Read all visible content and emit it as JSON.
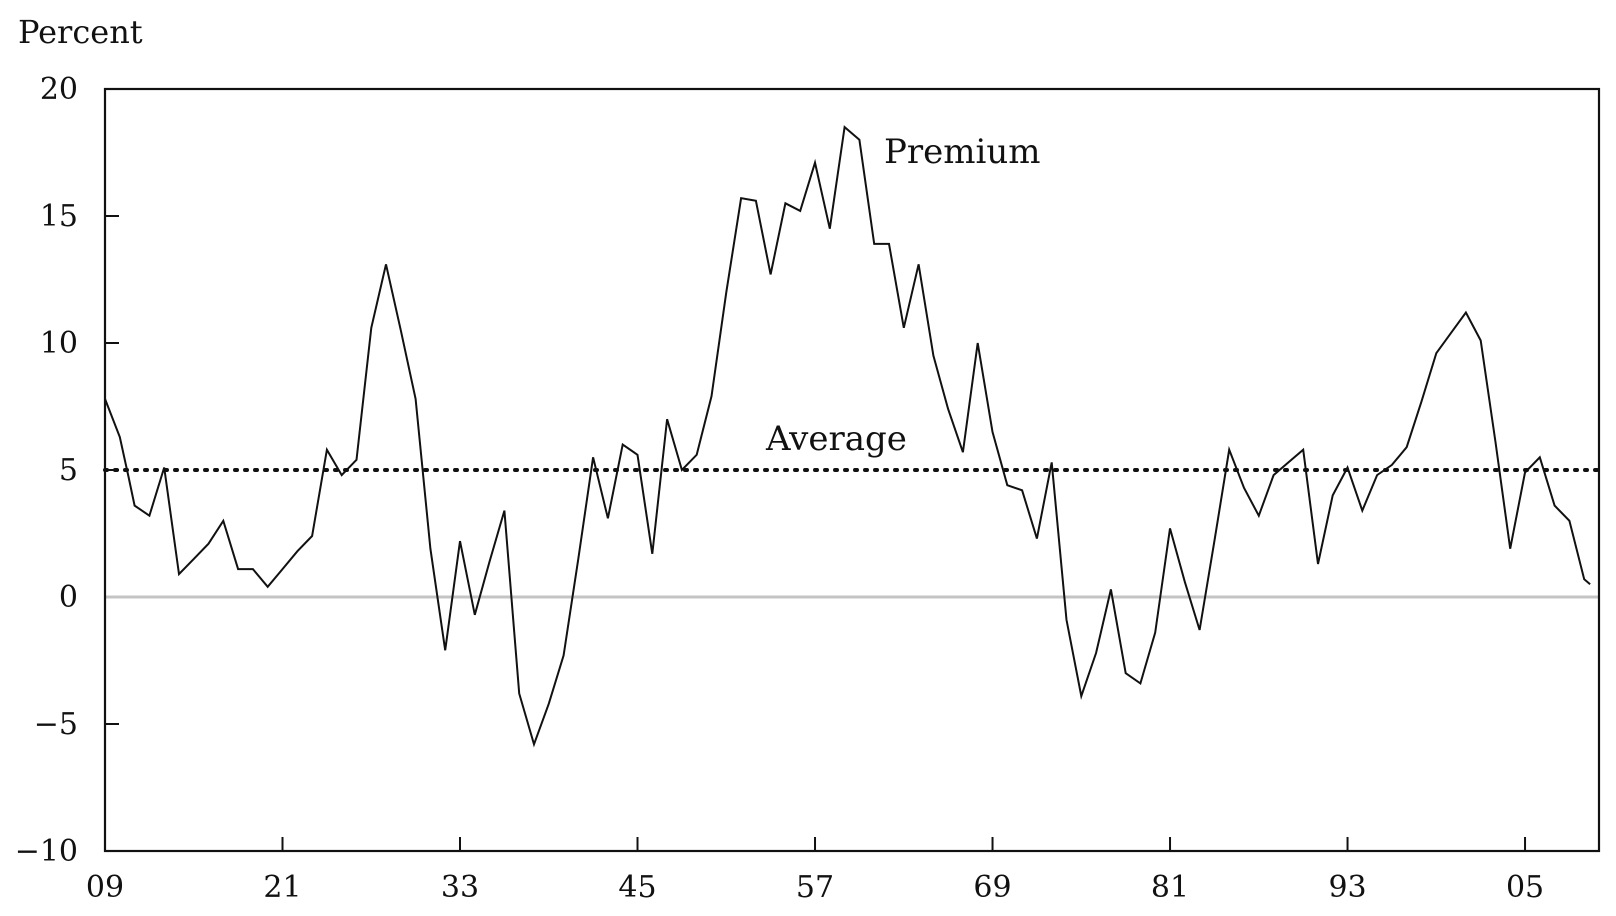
{
  "chart_data": {
    "type": "line",
    "ylabel": "Percent",
    "xlim": [
      1909,
      2010
    ],
    "ylim": [
      -10,
      20
    ],
    "y_ticks": [
      "20",
      "15",
      "10",
      "5",
      "0",
      "−5",
      "−10"
    ],
    "x_ticks": [
      "09",
      "21",
      "33",
      "45",
      "57",
      "69",
      "81",
      "93",
      "05"
    ],
    "grid": false,
    "zero_line": true,
    "series": [
      {
        "name": "Premium",
        "x": [
          1909,
          1910,
          1910.6,
          1911,
          1912,
          1913,
          1914,
          1915,
          1916,
          1917,
          1918,
          1919,
          1920,
          1921,
          1922,
          1923,
          1924,
          1925,
          1926,
          1927,
          1928,
          1929,
          1930,
          1931,
          1932,
          1933,
          1934,
          1935,
          1936,
          1937,
          1938,
          1939,
          1940,
          1941,
          1942,
          1943,
          1944,
          1945,
          1946,
          1947,
          1948,
          1949,
          1950,
          1951,
          1952,
          1953,
          1954,
          1955,
          1956,
          1957,
          1958,
          1959,
          1960,
          1961,
          1962,
          1963,
          1964,
          1965,
          1966,
          1967,
          1968,
          1969,
          1970,
          1971,
          1972,
          1973,
          1974,
          1975,
          1976,
          1977,
          1978,
          1979,
          1980,
          1981,
          1982,
          1983,
          1984,
          1985,
          1986,
          1987,
          1988,
          1989,
          1990,
          1991,
          1992,
          1993,
          1994,
          1995,
          1996,
          1997,
          1998,
          1999,
          2000,
          2001,
          2002,
          2003,
          2004,
          2005,
          2006,
          2007,
          2008,
          2009,
          2009.4
        ],
        "values": [
          7.8,
          6.3,
          4.7,
          3.6,
          3.2,
          5.1,
          0.9,
          1.5,
          2.1,
          3.0,
          1.1,
          1.1,
          0.4,
          1.1,
          1.8,
          2.4,
          5.8,
          4.8,
          5.4,
          10.6,
          13.1,
          10.5,
          7.8,
          1.9,
          -2.1,
          2.2,
          -0.7,
          1.4,
          3.4,
          -3.8,
          -5.8,
          -4.2,
          -2.3,
          1.5,
          5.5,
          3.1,
          6.0,
          5.6,
          1.7,
          7.0,
          5.0,
          5.6,
          7.9,
          12.0,
          15.7,
          15.6,
          12.7,
          15.5,
          15.2,
          17.1,
          14.5,
          18.5,
          18.0,
          13.9,
          13.9,
          10.6,
          13.1,
          9.5,
          7.4,
          5.7,
          10.0,
          6.5,
          4.4,
          4.2,
          2.3,
          5.3,
          -0.9,
          -3.9,
          -2.2,
          0.3,
          -3.0,
          -3.4,
          -1.4,
          2.7,
          0.6,
          -1.3,
          2.2,
          5.8,
          4.3,
          3.2,
          4.8,
          5.3,
          5.8,
          1.3,
          4.0,
          5.1,
          3.4,
          4.8,
          5.2,
          5.9,
          7.7,
          9.6,
          10.4,
          11.2,
          10.1,
          6.1,
          1.9,
          4.9,
          5.5,
          3.6,
          3.0,
          0.7,
          0.5
        ]
      },
      {
        "name": "Average",
        "x": [
          1909,
          2010
        ],
        "values": [
          5.0,
          5.0
        ]
      }
    ]
  }
}
